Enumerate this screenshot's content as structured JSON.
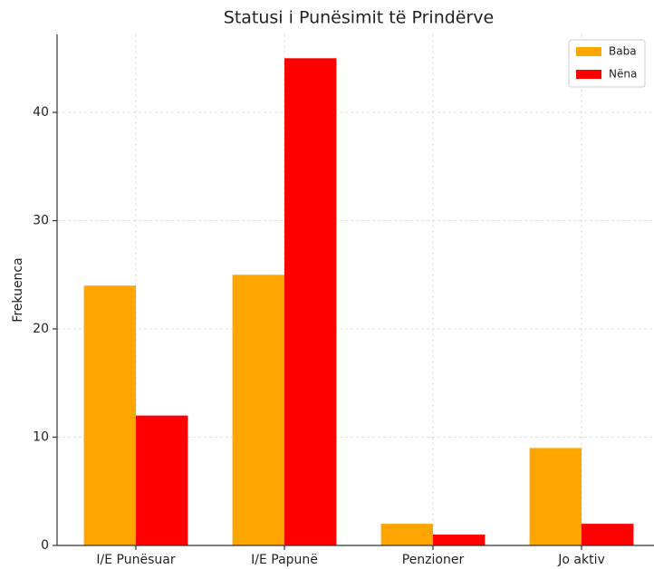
{
  "chart_data": {
    "type": "bar",
    "title": "Statusi i Punësimit të Prindërve",
    "y_label": "Frekuenca",
    "categories": [
      "I/E Punësuar",
      "I/E Papunë",
      "Penzioner",
      "Jo aktiv"
    ],
    "series": [
      {
        "name": "Baba",
        "color": "#FFA500",
        "values": [
          24,
          25,
          2,
          9
        ]
      },
      {
        "name": "Nëna",
        "color": "#FF0000",
        "values": [
          12,
          45,
          1,
          2
        ]
      }
    ],
    "ylim": [
      0,
      47.2
    ],
    "yticks": [
      0,
      10,
      20,
      30,
      40
    ],
    "grid": true,
    "legend": "upper right"
  }
}
